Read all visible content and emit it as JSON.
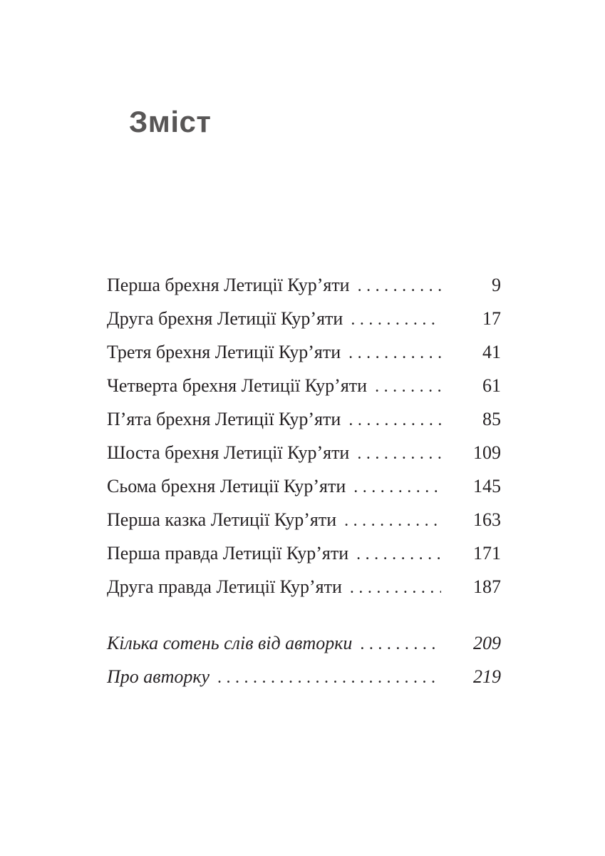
{
  "page": {
    "heading": "Зміст",
    "colors": {
      "background": "#ffffff",
      "heading": "#585656",
      "text": "#262224"
    },
    "toc": {
      "entries": [
        {
          "title": "Перша брехня Летиції Кур’яти",
          "page": "9"
        },
        {
          "title": "Друга брехня Летиції Кур’яти",
          "page": "17"
        },
        {
          "title": "Третя брехня Летиції Кур’яти",
          "page": "41"
        },
        {
          "title": "Четверта брехня Летиції Кур’яти",
          "page": "61"
        },
        {
          "title": "П’ята брехня Летиції Кур’яти",
          "page": "85"
        },
        {
          "title": "Шоста брехня Летиції Кур’яти",
          "page": "109"
        },
        {
          "title": "Сьома брехня Летиції Кур’яти",
          "page": "145"
        },
        {
          "title": "Перша казка Летиції Кур’яти",
          "page": "163"
        },
        {
          "title": "Перша правда Летиції Кур’яти",
          "page": "171"
        },
        {
          "title": "Друга правда Летиції Кур’яти",
          "page": "187"
        }
      ],
      "back_matter": [
        {
          "title": "Кілька сотень слів від авторки",
          "page": "209"
        },
        {
          "title": "Про авторку",
          "page": "219"
        }
      ]
    }
  }
}
